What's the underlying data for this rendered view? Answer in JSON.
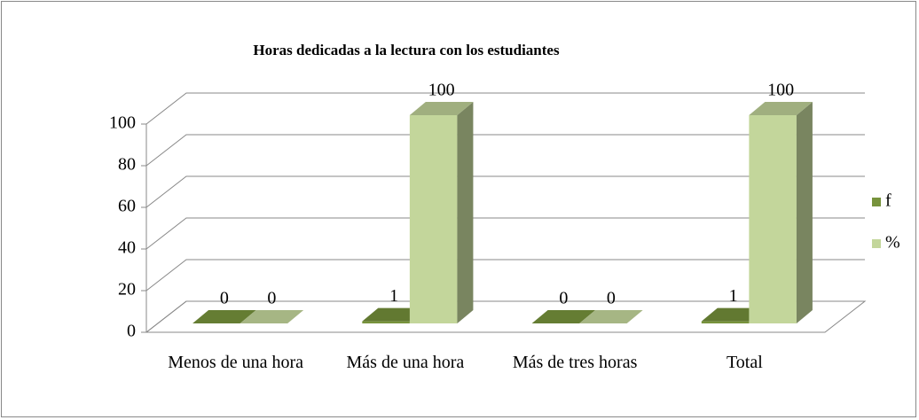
{
  "chart_data": {
    "type": "bar3d",
    "title": "Horas dedicadas a la lectura con los estudiantes",
    "categories": [
      "Menos de una hora",
      "Más de una hora",
      "Más de tres horas",
      "Total"
    ],
    "series": [
      {
        "name": "f",
        "color": "#77933c",
        "values": [
          0,
          1,
          0,
          1
        ]
      },
      {
        "name": "%",
        "color": "#c3d69b",
        "values": [
          0,
          100,
          0,
          100
        ]
      }
    ],
    "ylim": [
      0,
      100
    ],
    "yticks": [
      0,
      20,
      40,
      60,
      80,
      100
    ],
    "grid": true,
    "legend": "right"
  }
}
